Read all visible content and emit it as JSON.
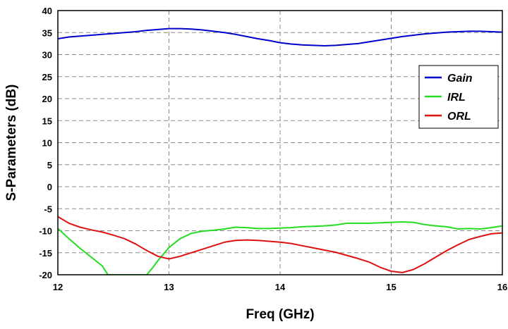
{
  "chart_data": {
    "type": "line",
    "title": "",
    "xlabel": "Freq (GHz)",
    "ylabel": "S-Parameters (dB)",
    "xlim": [
      12,
      16
    ],
    "ylim": [
      -20,
      40
    ],
    "xticks": [
      12,
      13,
      14,
      15,
      16
    ],
    "yticks": [
      -20,
      -15,
      -10,
      -5,
      0,
      5,
      10,
      15,
      20,
      25,
      30,
      35,
      40
    ],
    "grid": true,
    "legend_position": "right",
    "series": [
      {
        "name": "Gain",
        "color": "#0000cc",
        "points": [
          [
            12.0,
            33.6
          ],
          [
            12.1,
            34.0
          ],
          [
            12.2,
            34.2
          ],
          [
            12.3,
            34.4
          ],
          [
            12.4,
            34.6
          ],
          [
            12.5,
            34.8
          ],
          [
            12.6,
            35.0
          ],
          [
            12.7,
            35.2
          ],
          [
            12.8,
            35.5
          ],
          [
            12.9,
            35.7
          ],
          [
            13.0,
            35.9
          ],
          [
            13.1,
            35.9
          ],
          [
            13.2,
            35.8
          ],
          [
            13.3,
            35.6
          ],
          [
            13.4,
            35.3
          ],
          [
            13.5,
            35.0
          ],
          [
            13.6,
            34.6
          ],
          [
            13.7,
            34.1
          ],
          [
            13.8,
            33.6
          ],
          [
            13.9,
            33.2
          ],
          [
            14.0,
            32.7
          ],
          [
            14.1,
            32.4
          ],
          [
            14.2,
            32.2
          ],
          [
            14.3,
            32.1
          ],
          [
            14.4,
            32.0
          ],
          [
            14.5,
            32.1
          ],
          [
            14.6,
            32.3
          ],
          [
            14.7,
            32.5
          ],
          [
            14.8,
            32.9
          ],
          [
            14.9,
            33.3
          ],
          [
            15.0,
            33.7
          ],
          [
            15.1,
            34.1
          ],
          [
            15.2,
            34.4
          ],
          [
            15.3,
            34.7
          ],
          [
            15.4,
            34.9
          ],
          [
            15.5,
            35.1
          ],
          [
            15.6,
            35.2
          ],
          [
            15.7,
            35.3
          ],
          [
            15.8,
            35.3
          ],
          [
            15.9,
            35.2
          ],
          [
            16.0,
            35.1
          ]
        ]
      },
      {
        "name": "IRL",
        "color": "#22dd22",
        "points": [
          [
            12.0,
            -9.5
          ],
          [
            12.1,
            -11.8
          ],
          [
            12.2,
            -14.0
          ],
          [
            12.3,
            -16.0
          ],
          [
            12.4,
            -18.0
          ],
          [
            12.45,
            -20.0
          ],
          [
            12.8,
            -20.0
          ],
          [
            12.85,
            -18.5
          ],
          [
            12.9,
            -16.8
          ],
          [
            13.0,
            -13.8
          ],
          [
            13.1,
            -11.8
          ],
          [
            13.2,
            -10.6
          ],
          [
            13.3,
            -10.1
          ],
          [
            13.4,
            -9.9
          ],
          [
            13.5,
            -9.6
          ],
          [
            13.6,
            -9.2
          ],
          [
            13.7,
            -9.3
          ],
          [
            13.8,
            -9.5
          ],
          [
            13.9,
            -9.5
          ],
          [
            14.0,
            -9.4
          ],
          [
            14.1,
            -9.3
          ],
          [
            14.2,
            -9.1
          ],
          [
            14.3,
            -9.0
          ],
          [
            14.4,
            -8.9
          ],
          [
            14.5,
            -8.7
          ],
          [
            14.6,
            -8.3
          ],
          [
            14.7,
            -8.3
          ],
          [
            14.8,
            -8.3
          ],
          [
            14.9,
            -8.2
          ],
          [
            15.0,
            -8.1
          ],
          [
            15.1,
            -8.0
          ],
          [
            15.2,
            -8.1
          ],
          [
            15.3,
            -8.6
          ],
          [
            15.4,
            -8.9
          ],
          [
            15.5,
            -9.1
          ],
          [
            15.6,
            -9.6
          ],
          [
            15.7,
            -9.5
          ],
          [
            15.8,
            -9.6
          ],
          [
            15.9,
            -9.3
          ],
          [
            16.0,
            -8.9
          ]
        ]
      },
      {
        "name": "ORL",
        "color": "#dd1111",
        "points": [
          [
            12.0,
            -6.8
          ],
          [
            12.1,
            -8.3
          ],
          [
            12.2,
            -9.2
          ],
          [
            12.3,
            -9.8
          ],
          [
            12.4,
            -10.3
          ],
          [
            12.5,
            -11.0
          ],
          [
            12.6,
            -11.8
          ],
          [
            12.7,
            -13.0
          ],
          [
            12.8,
            -14.5
          ],
          [
            12.9,
            -15.8
          ],
          [
            13.0,
            -16.4
          ],
          [
            13.1,
            -15.8
          ],
          [
            13.2,
            -15.0
          ],
          [
            13.3,
            -14.2
          ],
          [
            13.4,
            -13.4
          ],
          [
            13.5,
            -12.6
          ],
          [
            13.6,
            -12.2
          ],
          [
            13.7,
            -12.1
          ],
          [
            13.8,
            -12.2
          ],
          [
            13.9,
            -12.4
          ],
          [
            14.0,
            -12.6
          ],
          [
            14.1,
            -12.9
          ],
          [
            14.2,
            -13.4
          ],
          [
            14.3,
            -13.9
          ],
          [
            14.4,
            -14.4
          ],
          [
            14.5,
            -14.9
          ],
          [
            14.6,
            -15.6
          ],
          [
            14.7,
            -16.3
          ],
          [
            14.8,
            -17.1
          ],
          [
            14.9,
            -18.3
          ],
          [
            15.0,
            -19.2
          ],
          [
            15.1,
            -19.5
          ],
          [
            15.2,
            -18.8
          ],
          [
            15.3,
            -17.5
          ],
          [
            15.4,
            -16.0
          ],
          [
            15.5,
            -14.5
          ],
          [
            15.6,
            -13.2
          ],
          [
            15.7,
            -12.0
          ],
          [
            15.8,
            -11.3
          ],
          [
            15.9,
            -10.7
          ],
          [
            16.0,
            -10.5
          ]
        ]
      }
    ]
  }
}
